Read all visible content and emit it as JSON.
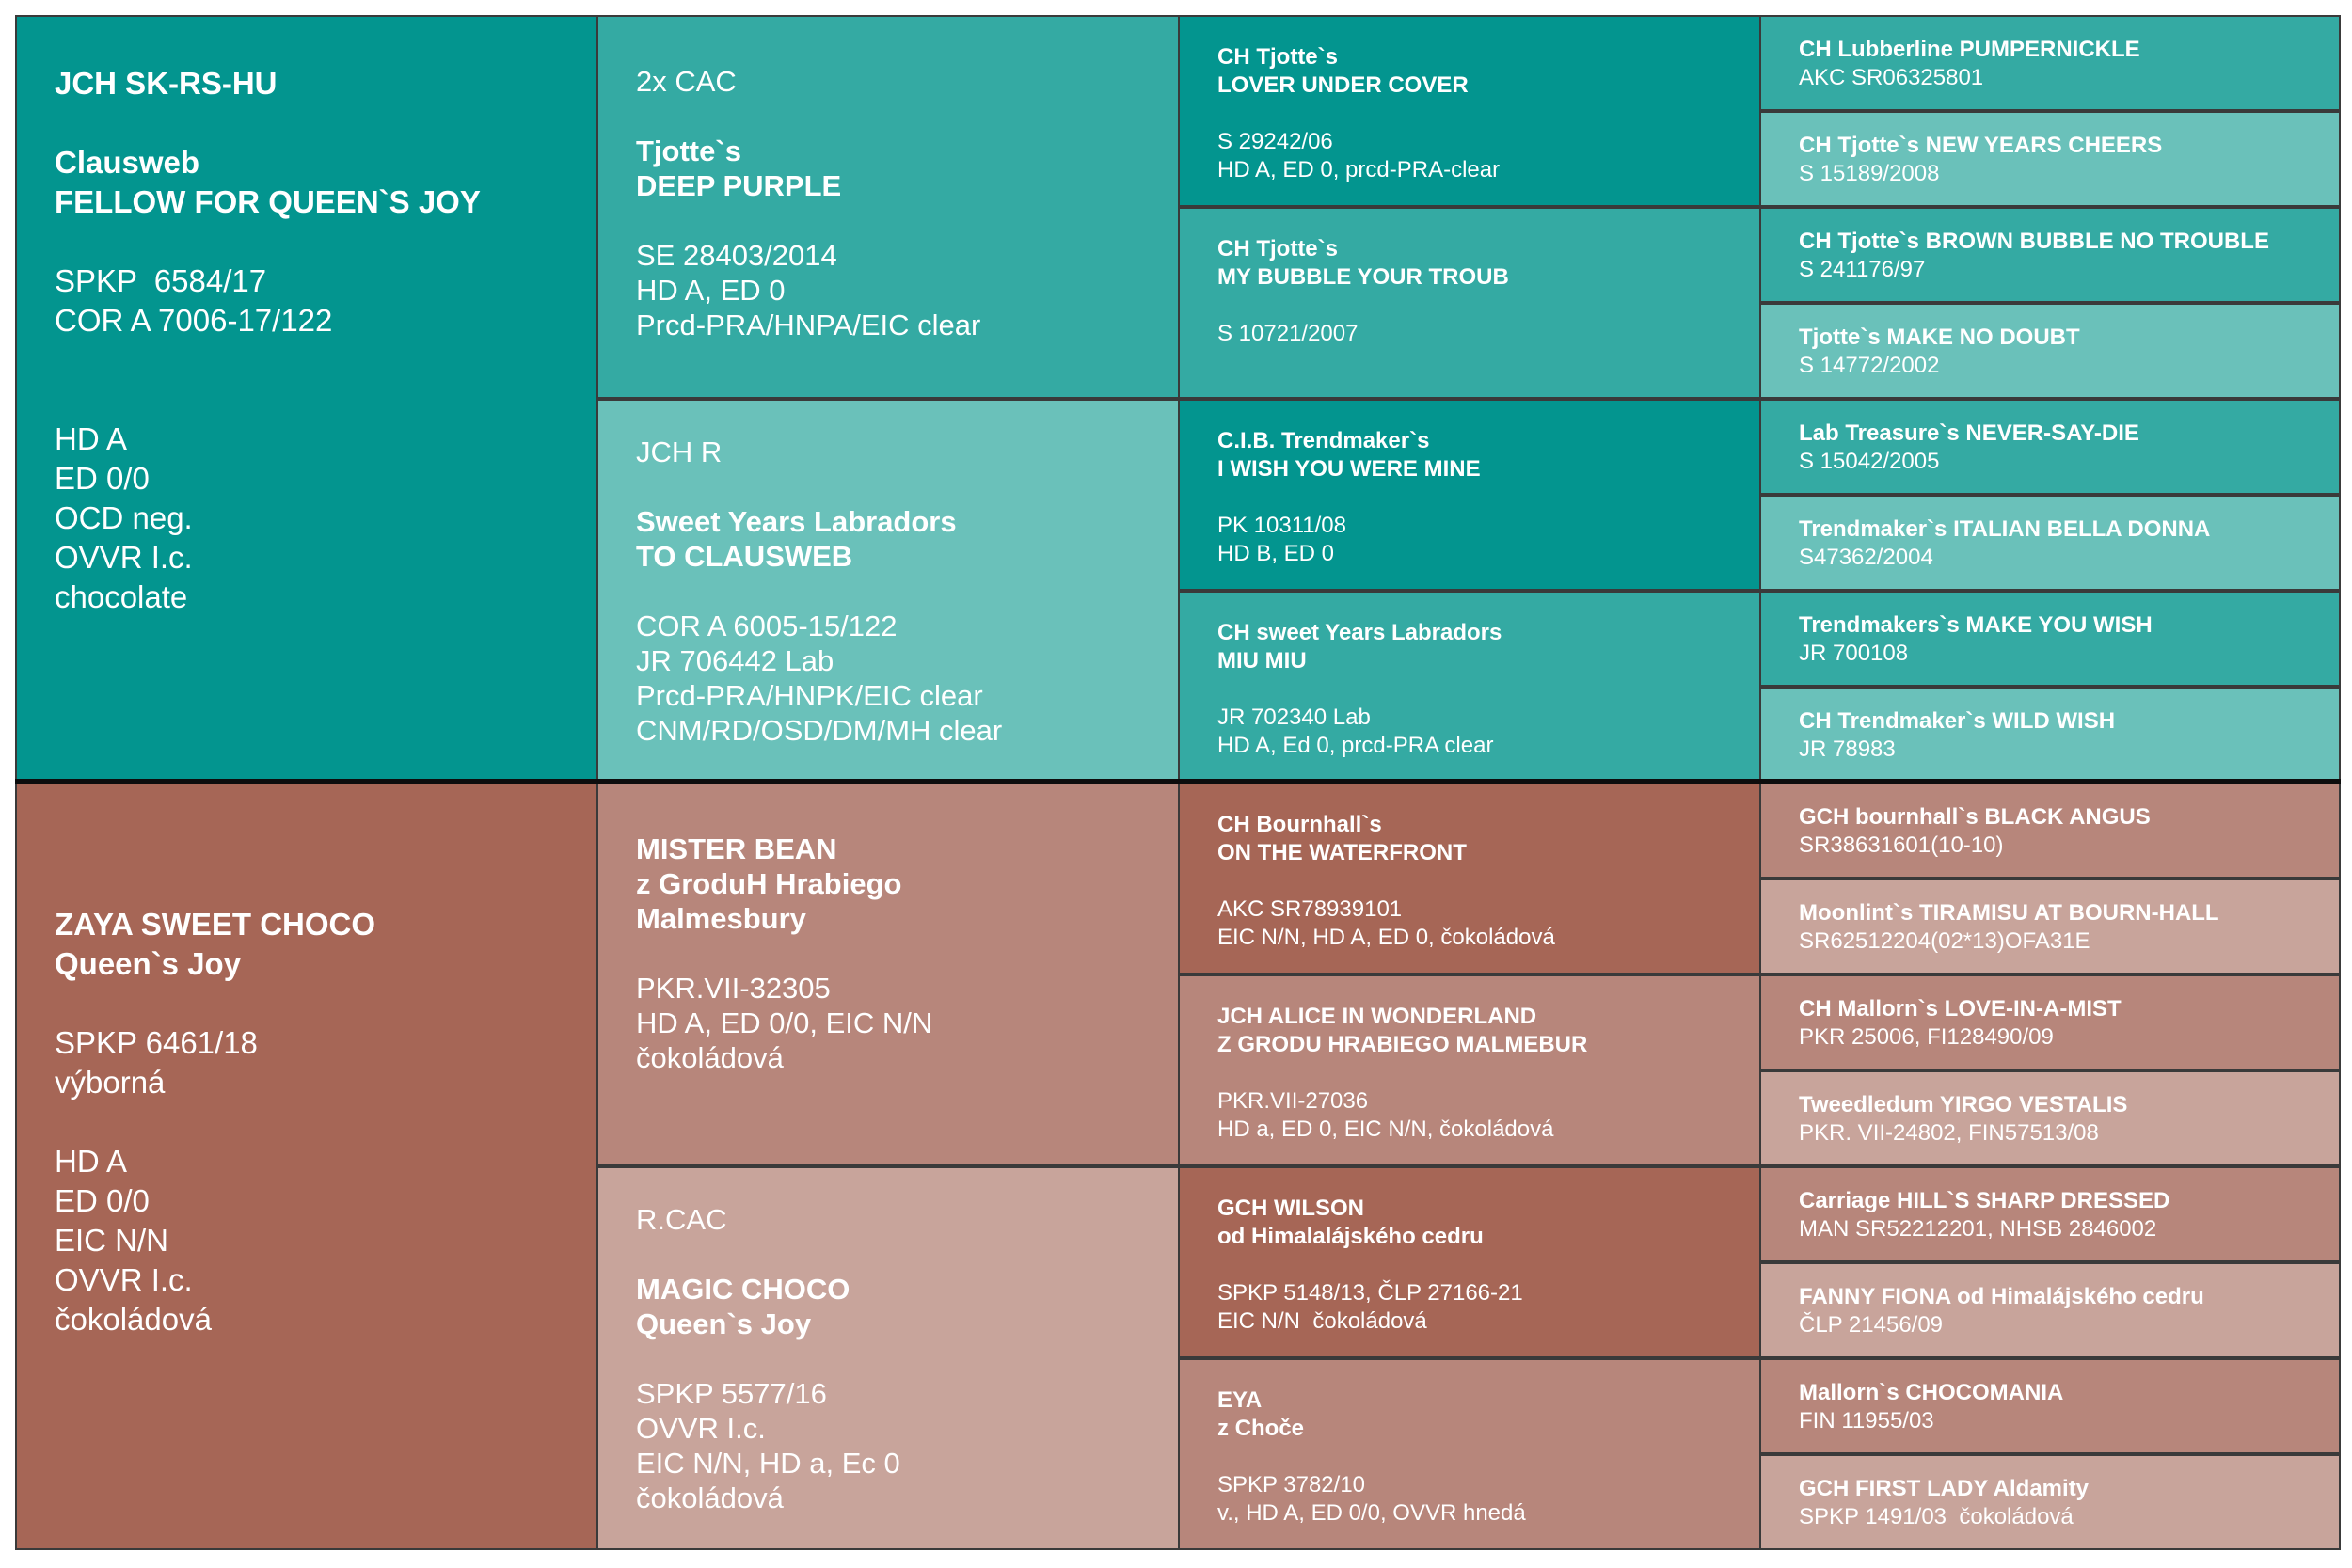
{
  "sire": {
    "lines": [
      "JCH SK-RS-HU",
      "",
      "Clausweb",
      "FELLOW FOR QUEEN`S JOY",
      "",
      "SPKP  6584/17",
      "COR A 7006-17/122",
      "",
      "",
      "HD A",
      "ED 0/0",
      "OCD neg.",
      "OVVR I.c.",
      "chocolate"
    ]
  },
  "dam": {
    "lines": [
      "ZAYA SWEET CHOCO",
      "Queen`s Joy",
      "",
      "SPKP 6461/18",
      "výborná",
      "",
      "HD A",
      "ED 0/0",
      "EIC N/N",
      "OVVR I.c.",
      "čokoládová"
    ]
  },
  "gen2": {
    "ss": {
      "lines": [
        "2x CAC",
        "",
        "Tjotte`s",
        "DEEP PURPLE",
        "",
        "SE 28403/2014",
        "HD A, ED 0",
        "Prcd-PRA/HNPA/EIC clear"
      ]
    },
    "sd": {
      "lines": [
        "JCH R",
        "",
        "Sweet Years Labradors",
        "TO CLAUSWEB",
        "",
        "COR A 6005-15/122",
        "JR 706442 Lab",
        "Prcd-PRA/HNPK/EIC clear",
        "CNM/RD/OSD/DM/MH clear"
      ]
    },
    "ds": {
      "lines": [
        "MISTER BEAN",
        "z GroduH Hrabiego",
        "Malmesbury",
        "",
        "PKR.VII-32305",
        "HD A, ED 0/0, EIC N/N",
        "čokoládová"
      ]
    },
    "dd": {
      "lines": [
        "R.CAC",
        "",
        "MAGIC CHOCO",
        "Queen`s Joy",
        "",
        "SPKP 5577/16",
        "OVVR I.c.",
        "EIC N/N, HD a, Ec 0",
        "čokoládová"
      ]
    }
  },
  "gen3": [
    {
      "lines": [
        "CH Tjotte`s",
        "LOVER UNDER COVER",
        "",
        "S 29242/06",
        "HD A, ED 0, prcd-PRA-clear"
      ]
    },
    {
      "lines": [
        "CH Tjotte`s",
        "MY BUBBLE YOUR TROUB",
        "",
        "S 10721/2007"
      ]
    },
    {
      "lines": [
        "C.I.B. Trendmaker`s",
        "I WISH YOU WERE MINE",
        "",
        "PK 10311/08",
        "HD B, ED 0"
      ]
    },
    {
      "lines": [
        "CH sweet Years Labradors",
        "MIU MIU",
        "",
        "JR 702340 Lab",
        "HD A, Ed 0, prcd-PRA clear"
      ]
    },
    {
      "lines": [
        "CH Bournhall`s",
        "ON THE WATERFRONT",
        "",
        "AKC SR78939101",
        "EIC N/N, HD A, ED 0, čokoládová"
      ]
    },
    {
      "lines": [
        "JCH ALICE IN WONDERLAND",
        "Z GRODU HRABIEGO MALMEBUR",
        "",
        "PKR.VII-27036",
        "HD a, ED 0, EIC N/N, čokoládová"
      ]
    },
    {
      "lines": [
        "GCH WILSON",
        "od Himalalájského cedru",
        "",
        "SPKP 5148/13, ČLP 27166-21",
        "EIC N/N  čokoládová"
      ]
    },
    {
      "lines": [
        "EYA",
        "z Choče",
        "",
        "SPKP 3782/10",
        "v., HD A, ED 0/0, OVVR hnedá"
      ]
    }
  ],
  "gen4": [
    {
      "name": "CH Lubberline PUMPERNICKLE",
      "reg": "AKC SR06325801"
    },
    {
      "name": "CH Tjotte`s NEW YEARS CHEERS",
      "reg": "S 15189/2008"
    },
    {
      "name": "CH Tjotte`s BROWN BUBBLE NO TROUBLE",
      "reg": "S 241176/97"
    },
    {
      "name": "Tjotte`s MAKE NO DOUBT",
      "reg": "S 14772/2002"
    },
    {
      "name": "Lab Treasure`s NEVER-SAY-DIE",
      "reg": "S 15042/2005"
    },
    {
      "name": "Trendmaker`s ITALIAN BELLA DONNA",
      "reg": "S47362/2004"
    },
    {
      "name": "Trendmakers`s MAKE YOU WISH",
      "reg": "JR 700108"
    },
    {
      "name": "CH Trendmaker`s WILD WISH",
      "reg": "JR 78983"
    },
    {
      "name": "GCH bournhall`s BLACK ANGUS",
      "reg": "SR38631601(10-10)"
    },
    {
      "name": "Moonlint`s TIRAMISU AT BOURN-HALL",
      "reg": "SR62512204(02*13)OFA31E"
    },
    {
      "name": "CH Mallorn`s LOVE-IN-A-MIST",
      "reg": "PKR 25006, FI128490/09"
    },
    {
      "name": "Tweedledum YIRGO VESTALIS",
      "reg": "PKR. VII-24802, FIN57513/08"
    },
    {
      "name": "Carriage HILL`S SHARP DRESSED",
      "reg": "MAN SR52212201, NHSB 2846002"
    },
    {
      "name": "FANNY FIONA od Himalájského cedru",
      "reg": "ČLP 21456/09"
    },
    {
      "name": "Mallorn`s CHOCOMANIA",
      "reg": "FIN 11955/03"
    },
    {
      "name": "GCH FIRST LADY Aldamity",
      "reg": "SPKP 1491/03  čokoládová"
    }
  ],
  "colors": {
    "teal_dark": "#03958f",
    "teal_mid": "#34aaa3",
    "teal_light": "#6ac1ba",
    "brown_dark": "#a66656",
    "brown_mid": "#b7867b",
    "brown_light": "#c8a49b"
  }
}
